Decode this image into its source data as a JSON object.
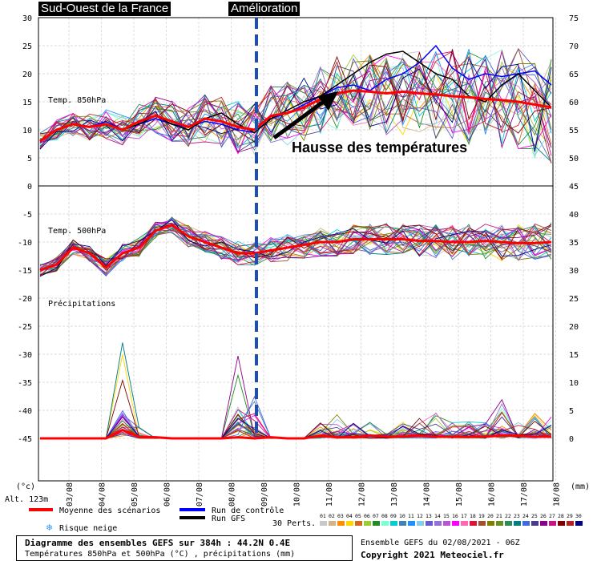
{
  "labels": {
    "region": "Sud-Ouest de la France",
    "event": "Amélioration",
    "annotation": "Hausse des températures",
    "panel_850": "Temp. 850hPa",
    "panel_500": "Temp. 500hPa",
    "panel_precip": "Précipitations",
    "unit_left": "(°c)",
    "unit_right": "(mm)",
    "altitude": "Alt. 123m"
  },
  "legend": {
    "mean": "Moyenne des scénarios",
    "control": "Run de contrôle",
    "gfs": "Run GFS",
    "perts_label": "30 Perts.",
    "snow_risk": "Risque neige",
    "pert_numbers": [
      "01",
      "02",
      "03",
      "04",
      "05",
      "06",
      "07",
      "08",
      "09",
      "10",
      "11",
      "12",
      "13",
      "14",
      "15",
      "16",
      "17",
      "18",
      "19",
      "20",
      "21",
      "22",
      "23",
      "24",
      "25",
      "26",
      "27",
      "28",
      "29",
      "30"
    ],
    "pert_colors": [
      "#c8c8c8",
      "#d2b48c",
      "#ff8c00",
      "#ffd700",
      "#d2691e",
      "#9acd32",
      "#228b22",
      "#7fffd4",
      "#00ced1",
      "#4682b4",
      "#1e90ff",
      "#87ceeb",
      "#6a5acd",
      "#9370db",
      "#ba55d3",
      "#ff00ff",
      "#ff69b4",
      "#dc143c",
      "#a0522d",
      "#808000",
      "#6b8e23",
      "#2e8b57",
      "#008080",
      "#4169e1",
      "#483d8b",
      "#8b008b",
      "#c71585",
      "#800000",
      "#b22222",
      "#000080"
    ]
  },
  "footer": {
    "title": "Diagramme des ensembles GEFS sur 384h : 44.2N 0.4E",
    "subtitle": "Températures 850hPa et 500hPa (°C) , précipitations (mm)",
    "ensemble": "Ensemble GEFS du 02/08/2021 - 06Z",
    "copyright": "Copyright 2021 Meteociel.fr"
  },
  "colors": {
    "mean": "#ff0000",
    "control": "#0000ff",
    "gfs": "#000000",
    "event_line": "#1f4fa8",
    "arrow": "#000000"
  },
  "chart_data": {
    "type": "line",
    "x_dates": [
      "03/08",
      "04/08",
      "05/08",
      "06/08",
      "07/08",
      "08/08",
      "09/08",
      "10/08",
      "11/08",
      "12/08",
      "13/08",
      "14/08",
      "15/08",
      "16/08",
      "17/08",
      "18/08"
    ],
    "event_date": "09/08",
    "left_axis": {
      "ticks": [
        30,
        25,
        20,
        15,
        10,
        5,
        0,
        -5,
        -10,
        -15,
        -20,
        -25,
        -30,
        -35,
        -40,
        -45
      ]
    },
    "right_axis_850": {
      "ticks": [
        75,
        70,
        65,
        60,
        55,
        50,
        45
      ],
      "range": [
        45,
        75
      ]
    },
    "right_axis_500_precip": {
      "ticks": [
        40,
        35,
        30,
        25,
        20,
        15,
        10,
        5,
        0
      ],
      "range": [
        0,
        40
      ]
    },
    "panels": {
      "temp850": {
        "ylim": [
          0,
          30
        ],
        "mean": [
          8,
          10,
          11,
          10.5,
          11,
          10,
          11.5,
          12.5,
          11.5,
          10.5,
          12,
          11.5,
          10.5,
          10,
          12.5,
          13,
          14,
          15.5,
          16.5,
          17,
          16.8,
          16.5,
          16.8,
          16.5,
          16.3,
          16,
          15.8,
          15.5,
          15.3,
          15,
          14.5,
          14
        ],
        "control": [
          8,
          10,
          11,
          10.5,
          11.5,
          10,
          11,
          12,
          11,
          10.5,
          11.5,
          11,
          10,
          9.5,
          12,
          13,
          14.5,
          16,
          17.5,
          18,
          17,
          19,
          20,
          22,
          25,
          21,
          19,
          20,
          19.5,
          20,
          20.5,
          18
        ],
        "gfs": [
          8,
          10,
          11,
          10.5,
          11,
          10,
          11,
          12.5,
          11,
          10,
          12,
          13,
          11,
          9.5,
          12,
          13.5,
          15,
          16,
          18,
          20,
          22,
          23.5,
          24,
          22,
          20,
          19,
          16,
          15,
          18,
          20,
          17,
          14
        ]
      },
      "temp500": {
        "ylim": [
          -20,
          -5
        ],
        "mean": [
          -15,
          -14,
          -11,
          -12,
          -14.5,
          -12,
          -11,
          -8,
          -7,
          -9,
          -10,
          -11,
          -12,
          -12,
          -11.5,
          -11,
          -10.5,
          -10,
          -10,
          -9.5,
          -9.5,
          -9.5,
          -9.5,
          -9.8,
          -9.8,
          -10,
          -10,
          -9.8,
          -10,
          -10.2,
          -10.2,
          -10
        ]
      },
      "precip": {
        "ylim": [
          0,
          20
        ],
        "mean": [
          0,
          0,
          0,
          0,
          0,
          1.5,
          0.3,
          0.2,
          0,
          0,
          0,
          0,
          0.2,
          0,
          0.2,
          0,
          0,
          0.5,
          0.2,
          0.2,
          0.5,
          0.3,
          0.3,
          0.5,
          0.3,
          0.3,
          0.3,
          0.3,
          0.5,
          0.5,
          0.3,
          0.3
        ],
        "max": [
          0,
          0,
          0,
          0,
          0,
          20,
          2,
          0,
          0,
          0,
          0,
          0,
          21,
          8,
          0,
          0,
          0,
          3,
          5,
          4,
          3,
          1,
          3,
          4,
          5,
          3,
          3,
          3,
          7,
          3,
          5,
          4
        ]
      }
    }
  }
}
